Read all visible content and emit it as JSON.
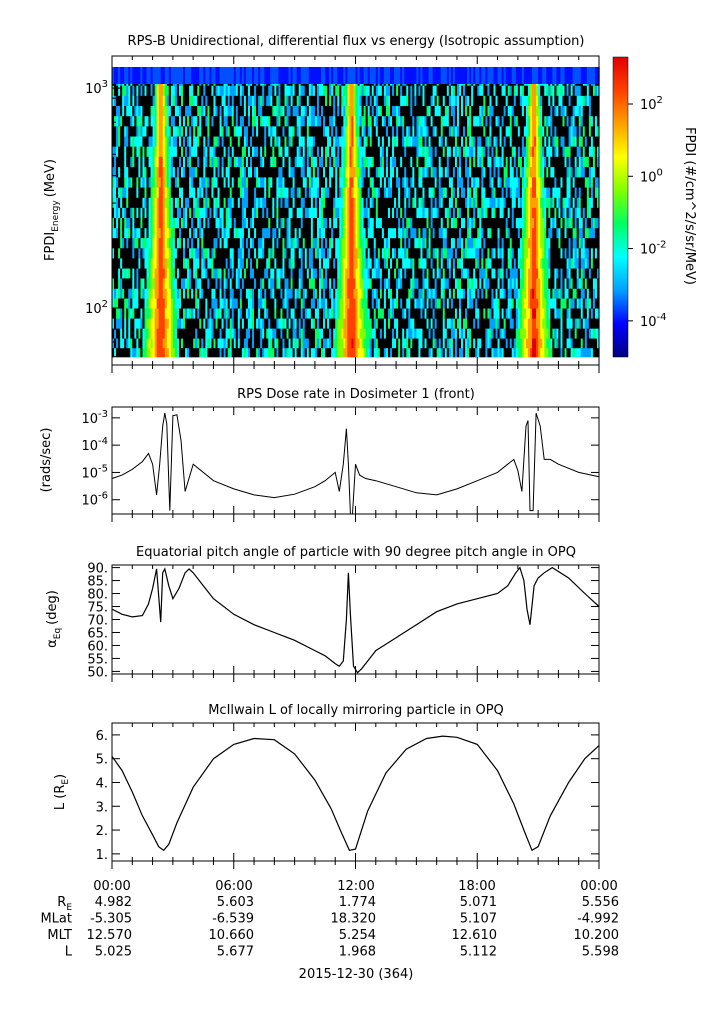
{
  "chart_data": [
    {
      "type": "heatmap",
      "title": "RPS-B  Unidirectional, differential flux vs energy (Isotropic assumption)",
      "ylabel_main": "FPDI",
      "ylabel_sub": "Energy",
      "ylabel_unit": "(MeV)",
      "yscale": "log",
      "ylim": [
        55,
        1400
      ],
      "yticks": [
        {
          "value": 100,
          "base": "10",
          "exp": "2"
        },
        {
          "value": 1000,
          "base": "10",
          "exp": "3"
        }
      ],
      "xlim_hours": [
        0,
        24
      ],
      "energy_bins": [
        60,
        66,
        73,
        81,
        90,
        100,
        111,
        123,
        137,
        152,
        169,
        188,
        209,
        232,
        258,
        287,
        319,
        355,
        395,
        440,
        490,
        545,
        606,
        674,
        750,
        834,
        928,
        1032,
        1148,
        1280
      ],
      "belt_crossings_hours": [
        2.4,
        11.8,
        20.8
      ],
      "colorbar": {
        "label": "FPDI (#/cm^2/s/sr/MeV)",
        "scale": "log",
        "range_exp": [
          -5,
          3.3
        ],
        "ticks": [
          {
            "base": "10",
            "exp": "2",
            "value_exp": 2
          },
          {
            "base": "10",
            "exp": "0",
            "value_exp": 0
          },
          {
            "base": "10",
            "exp": "-2",
            "value_exp": -2
          },
          {
            "base": "10",
            "exp": "-4",
            "value_exp": -4
          }
        ],
        "colors": [
          "#00007f",
          "#0000ff",
          "#00a0ff",
          "#00ffff",
          "#00ff60",
          "#80ff00",
          "#ffff00",
          "#ffa000",
          "#ff4000",
          "#e00000"
        ]
      }
    },
    {
      "type": "line",
      "title": "RPS  Dose rate in Dosimeter 1 (front)",
      "ylabel": "(rads/sec)",
      "yscale": "log",
      "ylim": [
        3e-07,
        0.0025
      ],
      "yticks": [
        {
          "value": 1e-06,
          "base": "10",
          "exp": "-6"
        },
        {
          "value": 1e-05,
          "base": "10",
          "exp": "-5"
        },
        {
          "value": 0.0001,
          "base": "10",
          "exp": "-4"
        },
        {
          "value": 0.001,
          "base": "10",
          "exp": "-3"
        }
      ],
      "x": [
        0,
        0.5,
        1.0,
        1.5,
        1.8,
        2.0,
        2.2,
        2.35,
        2.5,
        2.6,
        2.7,
        2.85,
        3.0,
        3.2,
        3.4,
        3.6,
        4.0,
        5.0,
        6.0,
        7.0,
        8.0,
        9.0,
        10.0,
        10.5,
        11.0,
        11.2,
        11.4,
        11.55,
        11.65,
        11.75,
        11.85,
        12.0,
        12.2,
        12.5,
        13.0,
        14.0,
        15.0,
        16.0,
        17.0,
        18.0,
        19.0,
        19.5,
        19.8,
        20.0,
        20.2,
        20.4,
        20.5,
        20.6,
        20.75,
        20.9,
        21.1,
        21.3,
        21.6,
        22.0,
        23.0,
        24.0
      ],
      "values": [
        6e-06,
        8e-06,
        1.3e-05,
        2.5e-05,
        5e-05,
        2e-05,
        1.5e-06,
        2e-05,
        0.0005,
        0.0015,
        0.0006,
        4e-07,
        0.0012,
        0.0013,
        0.00015,
        2e-06,
        2e-05,
        5e-06,
        2.5e-06,
        1.5e-06,
        1.2e-06,
        1.6e-06,
        3e-06,
        5e-06,
        1e-05,
        2e-06,
        2e-05,
        0.0004,
        2e-05,
        3e-07,
        3e-07,
        2e-05,
        8e-06,
        6e-06,
        5e-06,
        3e-06,
        1.8e-06,
        1.5e-06,
        2.5e-06,
        5e-06,
        1e-05,
        2e-05,
        3e-05,
        1.2e-05,
        2e-06,
        0.0005,
        0.0008,
        4e-07,
        4e-07,
        0.0015,
        0.0005,
        3e-05,
        3e-05,
        2e-05,
        1e-05,
        7e-06
      ]
    },
    {
      "type": "line",
      "title": "Equatorial pitch angle of particle with 90 degree pitch angle in OPQ",
      "ylabel_main": "α",
      "ylabel_sub": "Eq",
      "ylabel_unit": "(deg)",
      "ylim": [
        49,
        91
      ],
      "yticks": [
        50,
        55,
        60,
        65,
        70,
        75,
        80,
        85,
        90
      ],
      "ytick_labels": [
        "50.",
        "55.",
        "60.",
        "65.",
        "70.",
        "75.",
        "80.",
        "85.",
        "90."
      ],
      "x": [
        0,
        0.5,
        1.0,
        1.5,
        1.8,
        2.0,
        2.2,
        2.4,
        2.5,
        2.6,
        2.8,
        3.0,
        3.3,
        3.6,
        3.8,
        4.0,
        4.5,
        5.0,
        6.0,
        7.0,
        8.0,
        9.0,
        10.0,
        10.5,
        11.0,
        11.2,
        11.4,
        11.55,
        11.65,
        11.75,
        11.9,
        12.1,
        12.3,
        12.6,
        13.0,
        14.0,
        15.0,
        16.0,
        17.0,
        18.0,
        19.0,
        19.5,
        19.9,
        20.1,
        20.3,
        20.45,
        20.6,
        20.8,
        21.0,
        21.3,
        21.7,
        22.5,
        23.3,
        24.0
      ],
      "values": [
        74,
        72,
        71,
        71.5,
        76,
        82,
        89.5,
        69,
        88,
        89.5,
        83,
        78,
        82,
        88,
        89.5,
        88,
        83,
        78,
        72,
        68,
        65,
        62,
        58,
        56,
        53,
        52,
        54,
        70,
        88,
        72,
        52,
        49.5,
        51,
        54,
        58,
        63,
        68,
        73,
        76,
        78,
        80,
        83,
        88,
        90,
        85,
        74,
        68,
        83,
        86,
        88,
        90,
        86,
        80,
        75
      ]
    },
    {
      "type": "line",
      "title": "McIlwain L of locally mirroring particle in OPQ",
      "ylabel_main": "L (R",
      "ylabel_sub": "E",
      "ylabel_unit": ")",
      "ylim": [
        0.7,
        6.5
      ],
      "yticks": [
        1,
        2,
        3,
        4,
        5,
        6
      ],
      "ytick_labels": [
        "1.",
        "2.",
        "3.",
        "4.",
        "5.",
        "6."
      ],
      "x": [
        0,
        0.5,
        1.0,
        1.5,
        2.0,
        2.3,
        2.55,
        2.8,
        3.2,
        4.0,
        5.0,
        6.0,
        7.0,
        8.0,
        9.0,
        10.0,
        10.8,
        11.3,
        11.7,
        12.0,
        12.6,
        13.5,
        14.5,
        15.5,
        16.3,
        17.0,
        18.0,
        19.0,
        19.8,
        20.3,
        20.7,
        21.0,
        21.6,
        22.5,
        23.3,
        24.0
      ],
      "values": [
        5.1,
        4.5,
        3.6,
        2.6,
        1.8,
        1.3,
        1.15,
        1.4,
        2.3,
        3.8,
        5.0,
        5.6,
        5.85,
        5.8,
        5.2,
        4.1,
        2.9,
        1.9,
        1.15,
        1.2,
        2.8,
        4.4,
        5.4,
        5.85,
        5.95,
        5.9,
        5.6,
        4.5,
        3.1,
        2.0,
        1.15,
        1.3,
        2.6,
        4.0,
        5.0,
        5.55
      ]
    }
  ],
  "ephemeris": {
    "ticks": [
      "00:00",
      "06:00",
      "12:00",
      "18:00",
      "00:00"
    ],
    "rows": [
      {
        "label": "R",
        "label_sub": "E",
        "values": [
          "4.982",
          "5.603",
          "1.774",
          "5.071",
          "5.556"
        ]
      },
      {
        "label": "MLat",
        "label_sub": "",
        "values": [
          "-5.305",
          "-6.539",
          "18.320",
          "5.107",
          "-4.992"
        ]
      },
      {
        "label": "MLT",
        "label_sub": "",
        "values": [
          "12.570",
          "10.660",
          "5.254",
          "12.610",
          "10.200"
        ]
      },
      {
        "label": "L",
        "label_sub": "",
        "values": [
          "5.025",
          "5.677",
          "1.968",
          "5.112",
          "5.598"
        ]
      }
    ],
    "date": "2015-12-30 (364)"
  }
}
